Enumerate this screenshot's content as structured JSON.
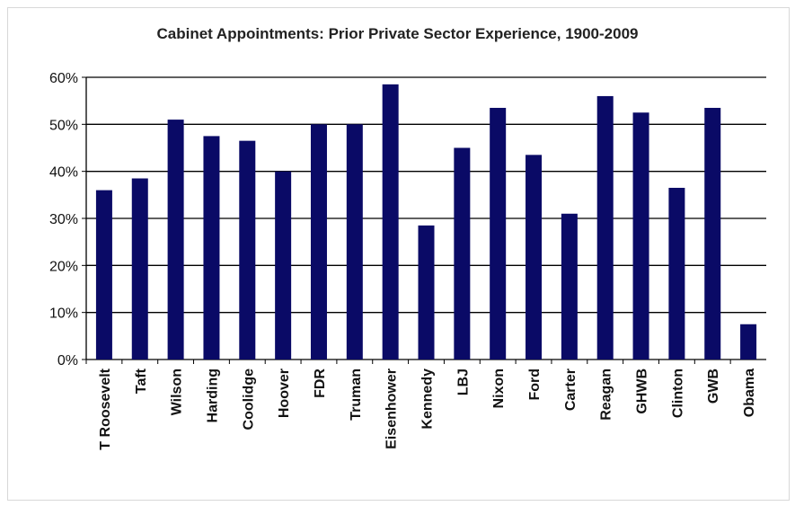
{
  "chart_data": {
    "type": "bar",
    "title": "Cabinet Appointments: Prior Private Sector Experience, 1900-2009",
    "xlabel": "",
    "ylabel": "",
    "ylim": [
      0,
      60
    ],
    "yticks": [
      "0%",
      "10%",
      "20%",
      "30%",
      "40%",
      "50%",
      "60%"
    ],
    "grid": true,
    "categories": [
      "T Roosevelt",
      "Taft",
      "Wilson",
      "Harding",
      "Coolidge",
      "Hoover",
      "FDR",
      "Truman",
      "Eisenhower",
      "Kennedy",
      "LBJ",
      "Nixon",
      "Ford",
      "Carter",
      "Reagan",
      "GHWB",
      "Clinton",
      "GWB",
      "Obama"
    ],
    "values": [
      36,
      38.5,
      51,
      47.5,
      46.5,
      40,
      50,
      50,
      58.5,
      28.5,
      45,
      53.5,
      43.5,
      31,
      56,
      52.5,
      36.5,
      53.5,
      7.5
    ],
    "colors": {
      "bar": "#0a0a66",
      "grid": "#000000"
    }
  }
}
